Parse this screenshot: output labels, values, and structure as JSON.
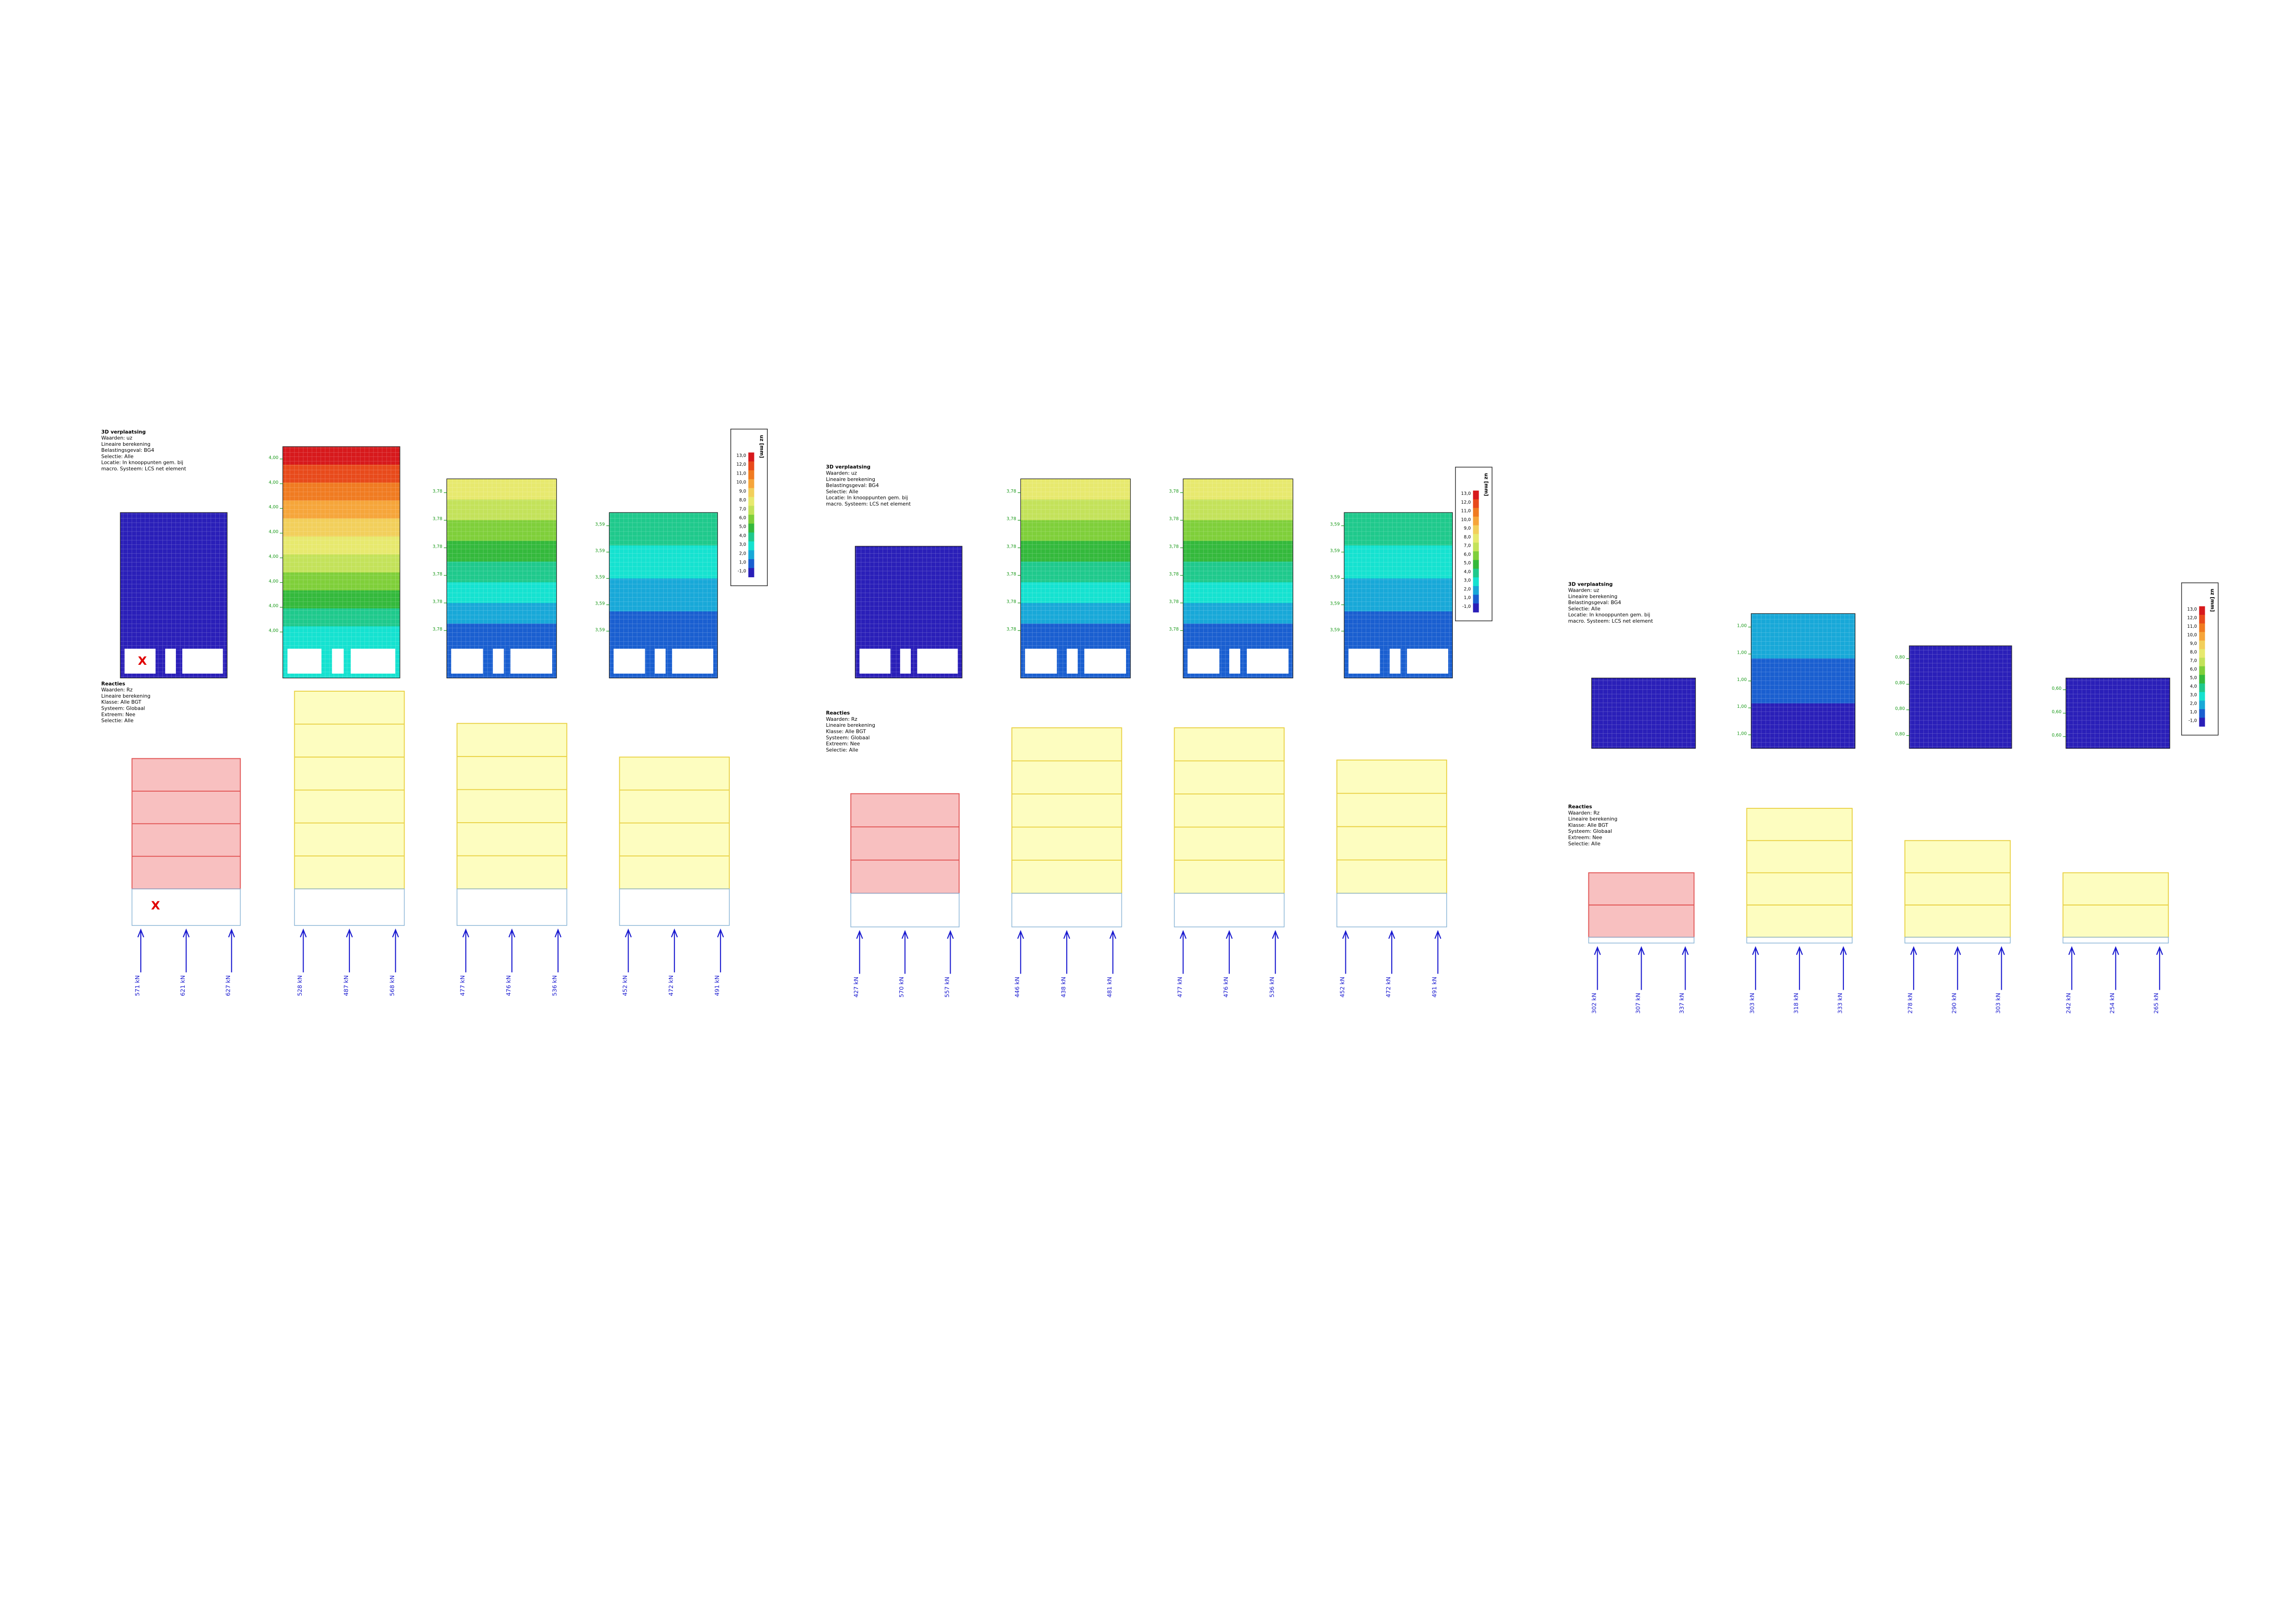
{
  "panels": [
    {
      "deformation": {
        "title": "3D verplaatsing",
        "lines": [
          "Waarden: uz",
          "Lineaire berekening",
          "Belastingsgeval: BG4",
          "Selectie: Alle",
          "Locatie: In knooppunten gem. bij",
          "macro. Systeem: LCS net element"
        ]
      },
      "legend": {
        "unit": "uz [mm]",
        "ticks": [
          "13,0",
          "12,0",
          "11,0",
          "10,0",
          "9,0",
          "8,0",
          "7,0",
          "6,0",
          "5,0",
          "4,0",
          "3,0",
          "2,0",
          "1,0",
          "-1,0"
        ]
      },
      "axis_marker": "X",
      "walls": [
        {
          "levels": []
        },
        {
          "levels": [
            "4,00",
            "4,00",
            "4,00",
            "4,00",
            "4,00",
            "4,00",
            "4,00",
            "4,00"
          ]
        },
        {
          "levels": [
            "3,78",
            "3,78",
            "3,78",
            "3,78",
            "3,78",
            "3,78"
          ]
        },
        {
          "levels": [
            "3,59",
            "3,59",
            "3,59",
            "3,59",
            "3,59"
          ]
        }
      ],
      "reactions": {
        "title": "Reacties",
        "lines": [
          "Waarden: Rz",
          "Lineaire berekening",
          "Klasse: Alle BGT",
          "Systeem: Globaal",
          "Extreem: Nee",
          "Selectie: Alle"
        ]
      },
      "reaction_groups": [
        [
          "571 kN",
          "621 kN",
          "627 kN"
        ],
        [
          "528 kN",
          "487 kN",
          "568 kN"
        ],
        [
          "477 kN",
          "476 kN",
          "536 kN"
        ],
        [
          "452 kN",
          "472 kN",
          "491 kN"
        ]
      ]
    },
    {
      "deformation": {
        "title": "3D verplaatsing",
        "lines": [
          "Waarden: uz",
          "Lineaire berekening",
          "Belastingsgeval: BG4",
          "Selectie: Alle",
          "Locatie: In knooppunten gem. bij",
          "macro. Systeem: LCS net element"
        ]
      },
      "legend": {
        "unit": "uz [mm]",
        "ticks": [
          "13,0",
          "12,0",
          "11,0",
          "10,0",
          "9,0",
          "8,0",
          "7,0",
          "6,0",
          "5,0",
          "4,0",
          "3,0",
          "2,0",
          "1,0",
          "-1,0"
        ]
      },
      "walls": [
        {
          "levels": []
        },
        {
          "levels": [
            "3,78",
            "3,78",
            "3,78",
            "3,78",
            "3,78",
            "3,78"
          ]
        },
        {
          "levels": [
            "3,78",
            "3,78",
            "3,78",
            "3,78",
            "3,78",
            "3,78"
          ]
        },
        {
          "levels": [
            "3,59",
            "3,59",
            "3,59",
            "3,59",
            "3,59"
          ]
        }
      ],
      "reactions": {
        "title": "Reacties",
        "lines": [
          "Waarden: Rz",
          "Lineaire berekening",
          "Klasse: Alle BGT",
          "Systeem: Globaal",
          "Extreem: Nee",
          "Selectie: Alle"
        ]
      },
      "reaction_groups": [
        [
          "427 kN",
          "570 kN",
          "557 kN"
        ],
        [
          "446 kN",
          "438 kN",
          "481 kN"
        ],
        [
          "477 kN",
          "476 kN",
          "536 kN"
        ],
        [
          "452 kN",
          "472 kN",
          "491 kN"
        ]
      ]
    },
    {
      "deformation": {
        "title": "3D verplaatsing",
        "lines": [
          "Waarden: uz",
          "Lineaire berekening",
          "Belastingsgeval: BG4",
          "Selectie: Alle",
          "Locatie: In knooppunten gem. bij",
          "macro. Systeem: LCS net element"
        ]
      },
      "legend": {
        "unit": "uz [mm]",
        "ticks": [
          "13,0",
          "12,0",
          "11,0",
          "10,0",
          "9,0",
          "8,0",
          "7,0",
          "6,0",
          "5,0",
          "4,0",
          "3,0",
          "2,0",
          "1,0",
          "-1,0"
        ]
      },
      "walls": [
        {
          "levels": []
        },
        {
          "levels": [
            "1,00",
            "1,00",
            "1,00",
            "1,00",
            "1,00"
          ]
        },
        {
          "levels": [
            "0,80",
            "0,80",
            "0,80",
            "0,80"
          ]
        },
        {
          "levels": [
            "0,60",
            "0,60",
            "0,60"
          ]
        }
      ],
      "reactions": {
        "title": "Reacties",
        "lines": [
          "Waarden: Rz",
          "Lineaire berekening",
          "Klasse: Alle BGT",
          "Systeem: Globaal",
          "Extreem: Nee",
          "Selectie: Alle"
        ]
      },
      "reaction_groups": [
        [
          "302 kN",
          "307 kN",
          "337 kN"
        ],
        [
          "303 kN",
          "318 kN",
          "333 kN"
        ],
        [
          "278 kN",
          "290 kN",
          "303 kN"
        ],
        [
          "242 kN",
          "254 kN",
          "265 kN"
        ]
      ]
    }
  ]
}
